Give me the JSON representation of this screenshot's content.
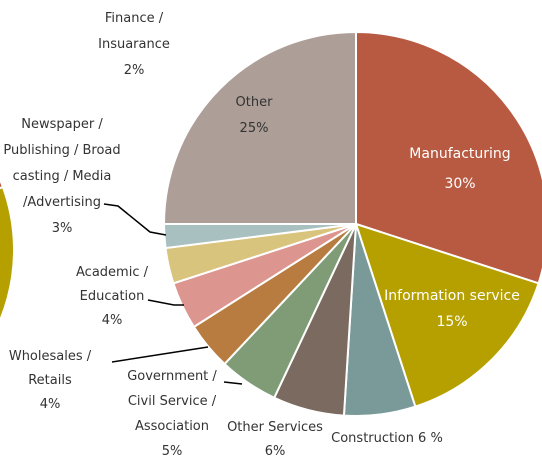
{
  "chart_data": {
    "type": "pie",
    "title": "",
    "start_angle_deg": 0,
    "direction": "clockwise",
    "slices": [
      {
        "name": "Manufacturing",
        "value": 30,
        "label_lines": [
          "Manufacturing",
          "30%"
        ],
        "color": "#b85a41"
      },
      {
        "name": "Information service",
        "value": 15,
        "label_lines": [
          "Information service",
          "15%"
        ],
        "color": "#b5a000"
      },
      {
        "name": "Construction",
        "value": 6,
        "label_lines": [
          "Construction 6 %"
        ],
        "color": "#7a9a9a"
      },
      {
        "name": "Other Services",
        "value": 6,
        "label_lines": [
          "Other Services",
          "6%"
        ],
        "color": "#7a6a5f"
      },
      {
        "name": "Government / Civil Service / Association",
        "value": 5,
        "label_lines": [
          "Government /",
          "Civil Service /",
          "Association",
          "5%"
        ],
        "color": "#7f9c76"
      },
      {
        "name": "Wholesales / Retails",
        "value": 4,
        "label_lines": [
          "Wholesales /",
          "Retails",
          "4%"
        ],
        "color": "#b87c40"
      },
      {
        "name": "Academic / Education",
        "value": 4,
        "label_lines": [
          "Academic /",
          "Education",
          "4%"
        ],
        "color": "#dc968f"
      },
      {
        "name": "Newspaper / Publishing / Broadcasting / Media / Advertising",
        "value": 3,
        "label_lines": [
          "Newspaper /",
          "Publishing / Broad",
          "casting / Media",
          "/Advertising",
          "3%"
        ],
        "color": "#d9c47e"
      },
      {
        "name": "Finance / Insuarance",
        "value": 2,
        "label_lines": [
          "Finance /",
          "Insuarance",
          "2%"
        ],
        "color": "#a9c0c0"
      },
      {
        "name": "Other",
        "value": 25,
        "label_lines": [
          "Other",
          "25%"
        ],
        "color": "#ad9f98"
      }
    ]
  }
}
